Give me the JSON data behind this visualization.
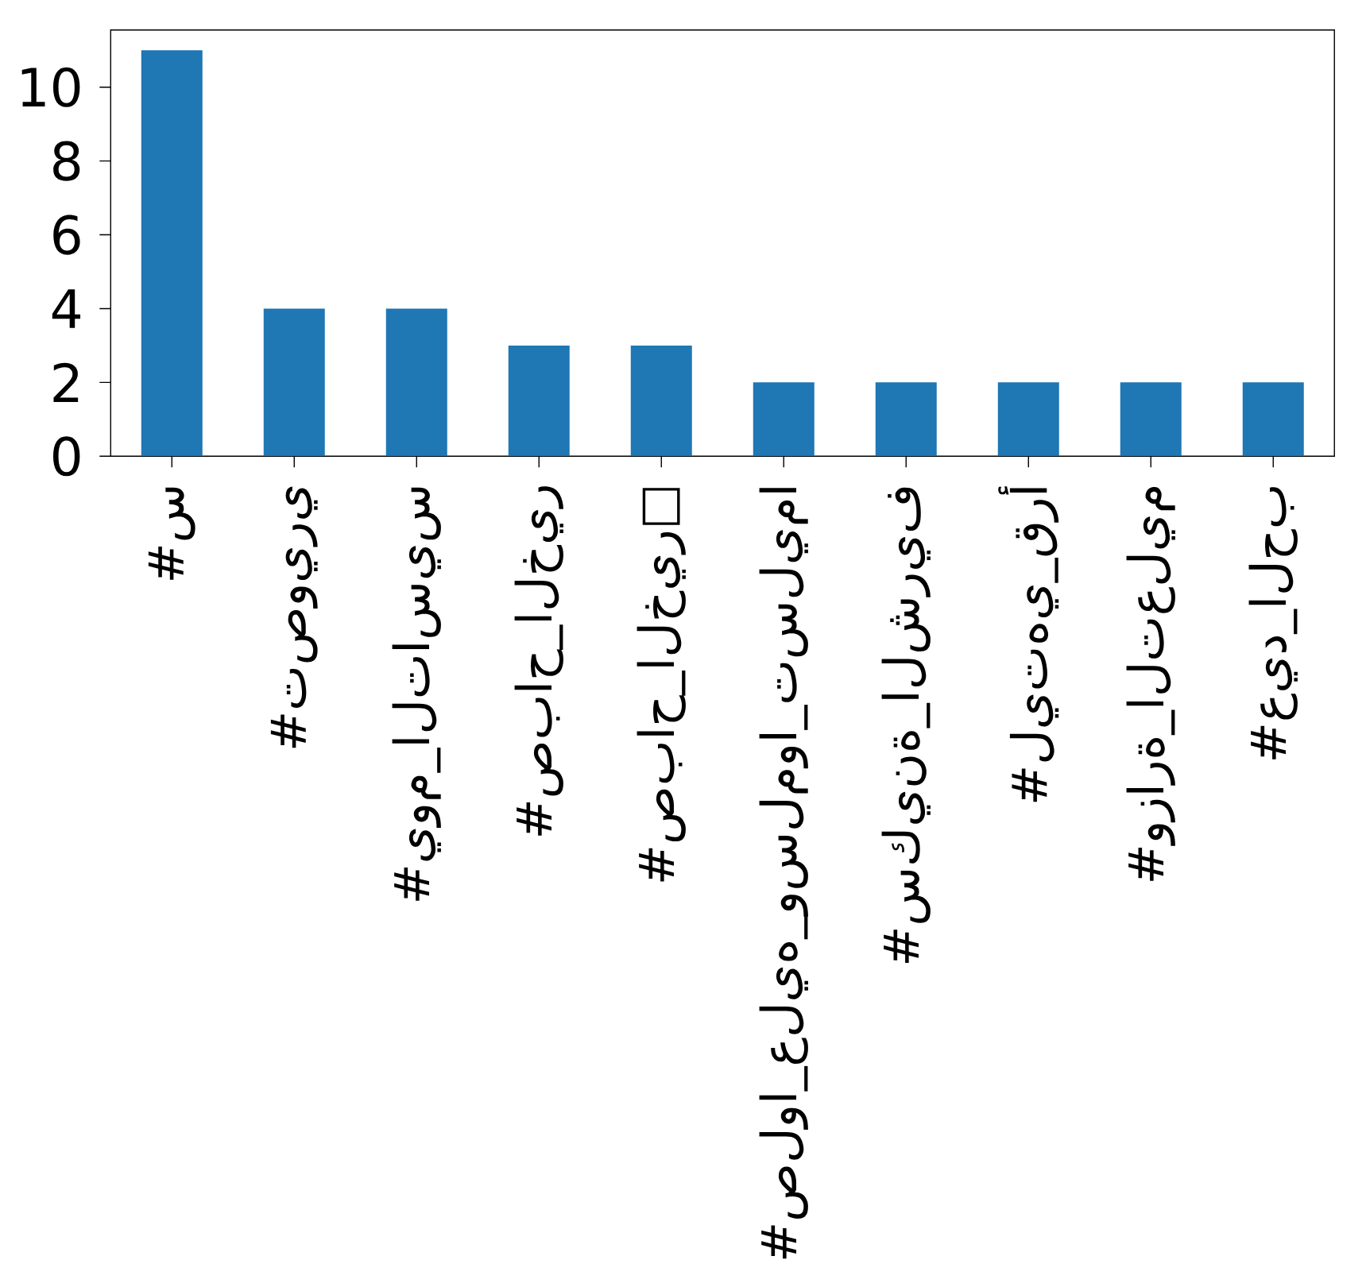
{
  "chart_data": {
    "type": "bar",
    "categories": [
      "#س",
      "#تصويري",
      "#يوم_التاسيس",
      "#صباح_الخير",
      "#صباح_الخير□",
      "#صلوا_عليه_وسلموا_تسليما",
      "#سكينة_الشريف",
      "#ليتهي_قرأ",
      "#وزارة_التعليم",
      "#عيد_الحب"
    ],
    "values": [
      11,
      4,
      4,
      3,
      3,
      2,
      2,
      2,
      2,
      2
    ],
    "color": "#1f77b4",
    "ylim": [
      0,
      11.55
    ],
    "yticks": [
      0,
      2,
      4,
      6,
      8,
      10
    ],
    "grid": false
  }
}
